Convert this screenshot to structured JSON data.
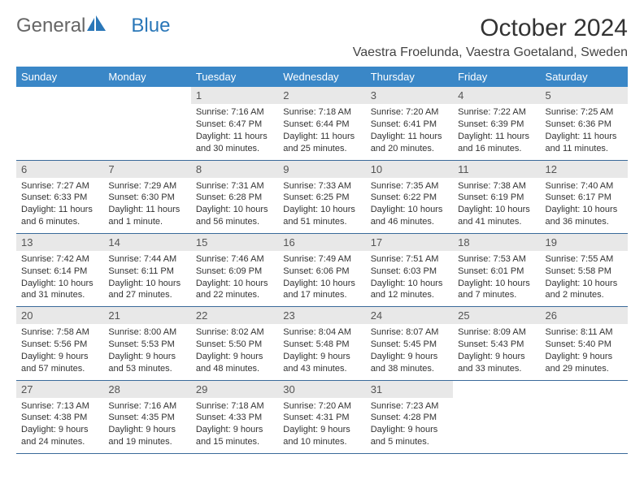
{
  "logo": {
    "text1": "General",
    "text2": "Blue"
  },
  "title": "October 2024",
  "location": "Vaestra Froelunda, Vaestra Goetaland, Sweden",
  "colors": {
    "header_bg": "#3a87c7",
    "header_fg": "#ffffff",
    "daynum_bg": "#e8e8e8",
    "daynum_fg": "#555555",
    "border": "#3a6a9a",
    "logo_gray": "#666666",
    "logo_blue": "#2a77b8"
  },
  "weekdays": [
    "Sunday",
    "Monday",
    "Tuesday",
    "Wednesday",
    "Thursday",
    "Friday",
    "Saturday"
  ],
  "weeks": [
    [
      null,
      null,
      {
        "n": "1",
        "sr": "7:16 AM",
        "ss": "6:47 PM",
        "dl": "11 hours and 30 minutes."
      },
      {
        "n": "2",
        "sr": "7:18 AM",
        "ss": "6:44 PM",
        "dl": "11 hours and 25 minutes."
      },
      {
        "n": "3",
        "sr": "7:20 AM",
        "ss": "6:41 PM",
        "dl": "11 hours and 20 minutes."
      },
      {
        "n": "4",
        "sr": "7:22 AM",
        "ss": "6:39 PM",
        "dl": "11 hours and 16 minutes."
      },
      {
        "n": "5",
        "sr": "7:25 AM",
        "ss": "6:36 PM",
        "dl": "11 hours and 11 minutes."
      }
    ],
    [
      {
        "n": "6",
        "sr": "7:27 AM",
        "ss": "6:33 PM",
        "dl": "11 hours and 6 minutes."
      },
      {
        "n": "7",
        "sr": "7:29 AM",
        "ss": "6:30 PM",
        "dl": "11 hours and 1 minute."
      },
      {
        "n": "8",
        "sr": "7:31 AM",
        "ss": "6:28 PM",
        "dl": "10 hours and 56 minutes."
      },
      {
        "n": "9",
        "sr": "7:33 AM",
        "ss": "6:25 PM",
        "dl": "10 hours and 51 minutes."
      },
      {
        "n": "10",
        "sr": "7:35 AM",
        "ss": "6:22 PM",
        "dl": "10 hours and 46 minutes."
      },
      {
        "n": "11",
        "sr": "7:38 AM",
        "ss": "6:19 PM",
        "dl": "10 hours and 41 minutes."
      },
      {
        "n": "12",
        "sr": "7:40 AM",
        "ss": "6:17 PM",
        "dl": "10 hours and 36 minutes."
      }
    ],
    [
      {
        "n": "13",
        "sr": "7:42 AM",
        "ss": "6:14 PM",
        "dl": "10 hours and 31 minutes."
      },
      {
        "n": "14",
        "sr": "7:44 AM",
        "ss": "6:11 PM",
        "dl": "10 hours and 27 minutes."
      },
      {
        "n": "15",
        "sr": "7:46 AM",
        "ss": "6:09 PM",
        "dl": "10 hours and 22 minutes."
      },
      {
        "n": "16",
        "sr": "7:49 AM",
        "ss": "6:06 PM",
        "dl": "10 hours and 17 minutes."
      },
      {
        "n": "17",
        "sr": "7:51 AM",
        "ss": "6:03 PM",
        "dl": "10 hours and 12 minutes."
      },
      {
        "n": "18",
        "sr": "7:53 AM",
        "ss": "6:01 PM",
        "dl": "10 hours and 7 minutes."
      },
      {
        "n": "19",
        "sr": "7:55 AM",
        "ss": "5:58 PM",
        "dl": "10 hours and 2 minutes."
      }
    ],
    [
      {
        "n": "20",
        "sr": "7:58 AM",
        "ss": "5:56 PM",
        "dl": "9 hours and 57 minutes."
      },
      {
        "n": "21",
        "sr": "8:00 AM",
        "ss": "5:53 PM",
        "dl": "9 hours and 53 minutes."
      },
      {
        "n": "22",
        "sr": "8:02 AM",
        "ss": "5:50 PM",
        "dl": "9 hours and 48 minutes."
      },
      {
        "n": "23",
        "sr": "8:04 AM",
        "ss": "5:48 PM",
        "dl": "9 hours and 43 minutes."
      },
      {
        "n": "24",
        "sr": "8:07 AM",
        "ss": "5:45 PM",
        "dl": "9 hours and 38 minutes."
      },
      {
        "n": "25",
        "sr": "8:09 AM",
        "ss": "5:43 PM",
        "dl": "9 hours and 33 minutes."
      },
      {
        "n": "26",
        "sr": "8:11 AM",
        "ss": "5:40 PM",
        "dl": "9 hours and 29 minutes."
      }
    ],
    [
      {
        "n": "27",
        "sr": "7:13 AM",
        "ss": "4:38 PM",
        "dl": "9 hours and 24 minutes."
      },
      {
        "n": "28",
        "sr": "7:16 AM",
        "ss": "4:35 PM",
        "dl": "9 hours and 19 minutes."
      },
      {
        "n": "29",
        "sr": "7:18 AM",
        "ss": "4:33 PM",
        "dl": "9 hours and 15 minutes."
      },
      {
        "n": "30",
        "sr": "7:20 AM",
        "ss": "4:31 PM",
        "dl": "9 hours and 10 minutes."
      },
      {
        "n": "31",
        "sr": "7:23 AM",
        "ss": "4:28 PM",
        "dl": "9 hours and 5 minutes."
      },
      null,
      null
    ]
  ]
}
